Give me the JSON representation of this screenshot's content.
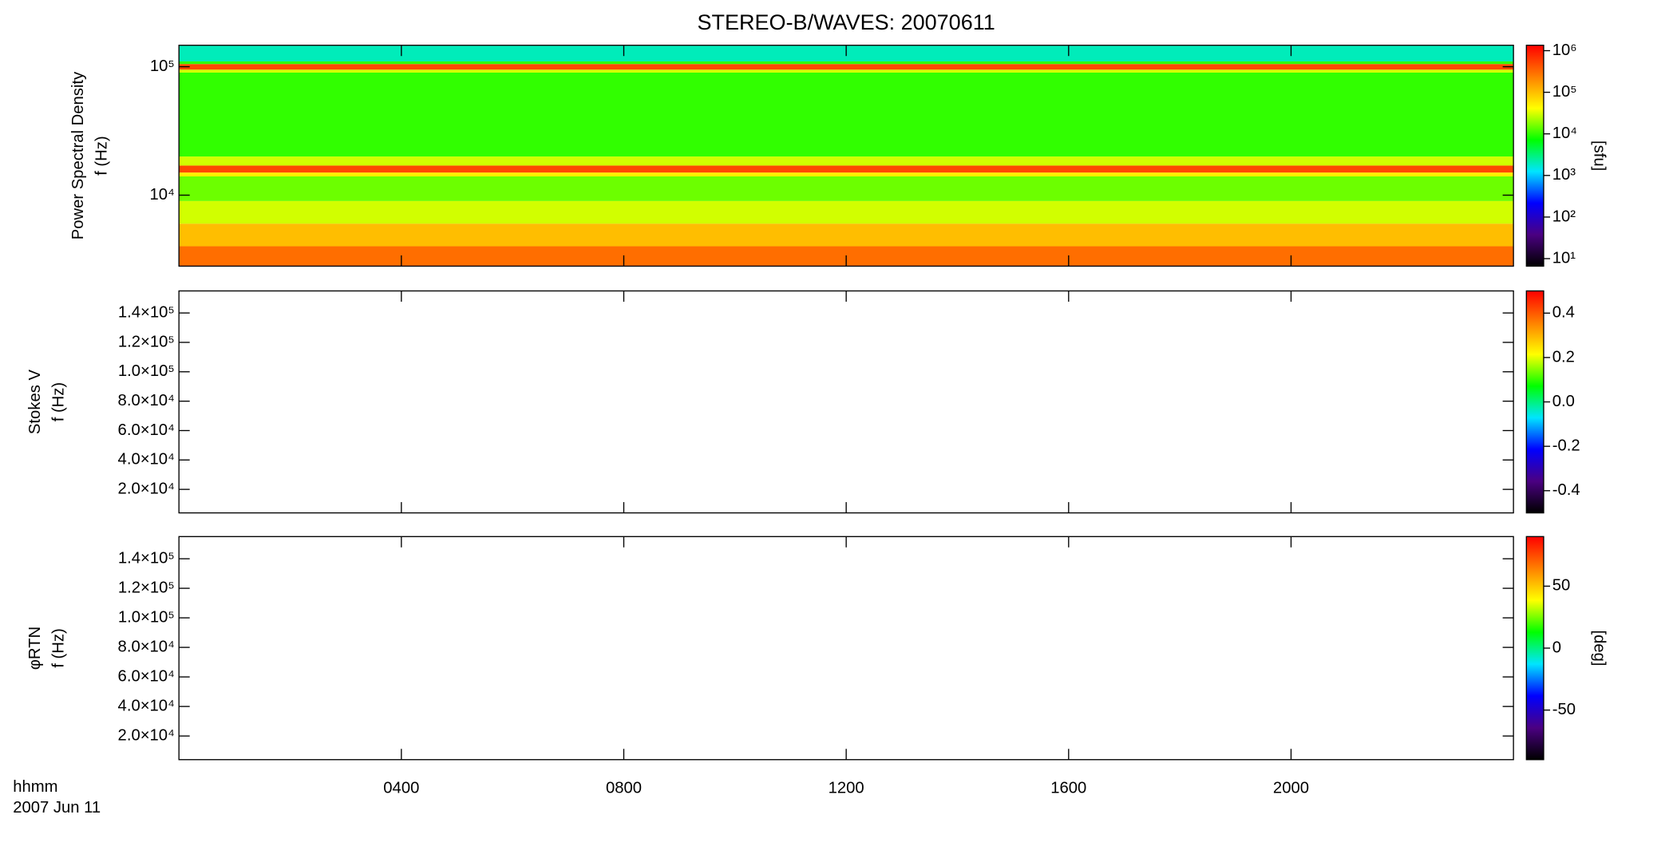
{
  "title": "STEREO-B/WAVES: 20070611",
  "chart_data": [
    {
      "type": "heatmap",
      "ylabel": [
        "Power Spectral Density",
        "f (Hz)"
      ],
      "ylog": true,
      "ylim": [
        2800,
        147000
      ],
      "yticks": [
        {
          "value": 10000,
          "label": "10⁴"
        },
        {
          "value": 100000,
          "label": "10⁵"
        }
      ],
      "xlim": [
        0,
        24
      ],
      "y_edges": [
        2800,
        4000,
        6000,
        9000,
        14000,
        15000,
        17000,
        20000,
        90000,
        95000,
        105000,
        110000,
        147000
      ],
      "values": [
        300000,
        100000,
        30000,
        15000,
        50000,
        500000,
        30000,
        10000,
        30000,
        500000,
        10000,
        2000
      ],
      "clog": true,
      "clim": [
        6.6,
        1350000
      ],
      "cticks": [
        {
          "value": 10,
          "label": "10¹"
        },
        {
          "value": 100,
          "label": "10²"
        },
        {
          "value": 1000,
          "label": "10³"
        },
        {
          "value": 10000,
          "label": "10⁴"
        },
        {
          "value": 100000,
          "label": "10⁵"
        },
        {
          "value": 1000000,
          "label": "10⁶"
        }
      ],
      "clabel": "[sfu]",
      "colormap": [
        "#000000",
        "#4b0082",
        "#0000ff",
        "#00e5ff",
        "#00ff00",
        "#ffff00",
        "#ff8000",
        "#ff0000"
      ]
    },
    {
      "type": "heatmap",
      "ylabel": [
        "Stokes V",
        "f (Hz)"
      ],
      "ylog": false,
      "ylim": [
        4000,
        155000
      ],
      "yticks": [
        {
          "value": 20000,
          "label": "2.0×10⁴"
        },
        {
          "value": 40000,
          "label": "4.0×10⁴"
        },
        {
          "value": 60000,
          "label": "6.0×10⁴"
        },
        {
          "value": 80000,
          "label": "8.0×10⁴"
        },
        {
          "value": 100000,
          "label": "1.0×10⁵"
        },
        {
          "value": 120000,
          "label": "1.2×10⁵"
        },
        {
          "value": 140000,
          "label": "1.4×10⁵"
        }
      ],
      "xlim": [
        0,
        24
      ],
      "clog": false,
      "clim": [
        -0.5,
        0.5
      ],
      "cticks": [
        -0.4,
        -0.2,
        {
          "value": 0,
          "label": "0.0"
        },
        0.2,
        0.4
      ],
      "colormap": [
        "#000000",
        "#4b0082",
        "#0000ff",
        "#00e5ff",
        "#00ff00",
        "#ffff00",
        "#ff8000",
        "#ff0000"
      ]
    },
    {
      "type": "heatmap",
      "ylabel": [
        "φRTN",
        "f (Hz)"
      ],
      "ylog": false,
      "ylim": [
        4000,
        155000
      ],
      "yticks": [
        {
          "value": 20000,
          "label": "2.0×10⁴"
        },
        {
          "value": 40000,
          "label": "4.0×10⁴"
        },
        {
          "value": 60000,
          "label": "6.0×10⁴"
        },
        {
          "value": 80000,
          "label": "8.0×10⁴"
        },
        {
          "value": 100000,
          "label": "1.0×10⁵"
        },
        {
          "value": 120000,
          "label": "1.2×10⁵"
        },
        {
          "value": 140000,
          "label": "1.4×10⁵"
        }
      ],
      "xlim": [
        0,
        24
      ],
      "xticks": [
        {
          "value": 4,
          "label": "0400"
        },
        {
          "value": 8,
          "label": "0800"
        },
        {
          "value": 12,
          "label": "1200"
        },
        {
          "value": 16,
          "label": "1600"
        },
        {
          "value": 20,
          "label": "2000"
        }
      ],
      "xlabel": [
        "hhmm",
        "2007 Jun 11"
      ],
      "clog": false,
      "clim": [
        -90,
        90
      ],
      "cticks": [
        -50,
        0,
        50
      ],
      "clabel": "[deg]",
      "colormap": [
        "#000000",
        "#4b0082",
        "#0000ff",
        "#00e5ff",
        "#00ff00",
        "#ffff00",
        "#ff8000",
        "#ff0000"
      ]
    }
  ]
}
